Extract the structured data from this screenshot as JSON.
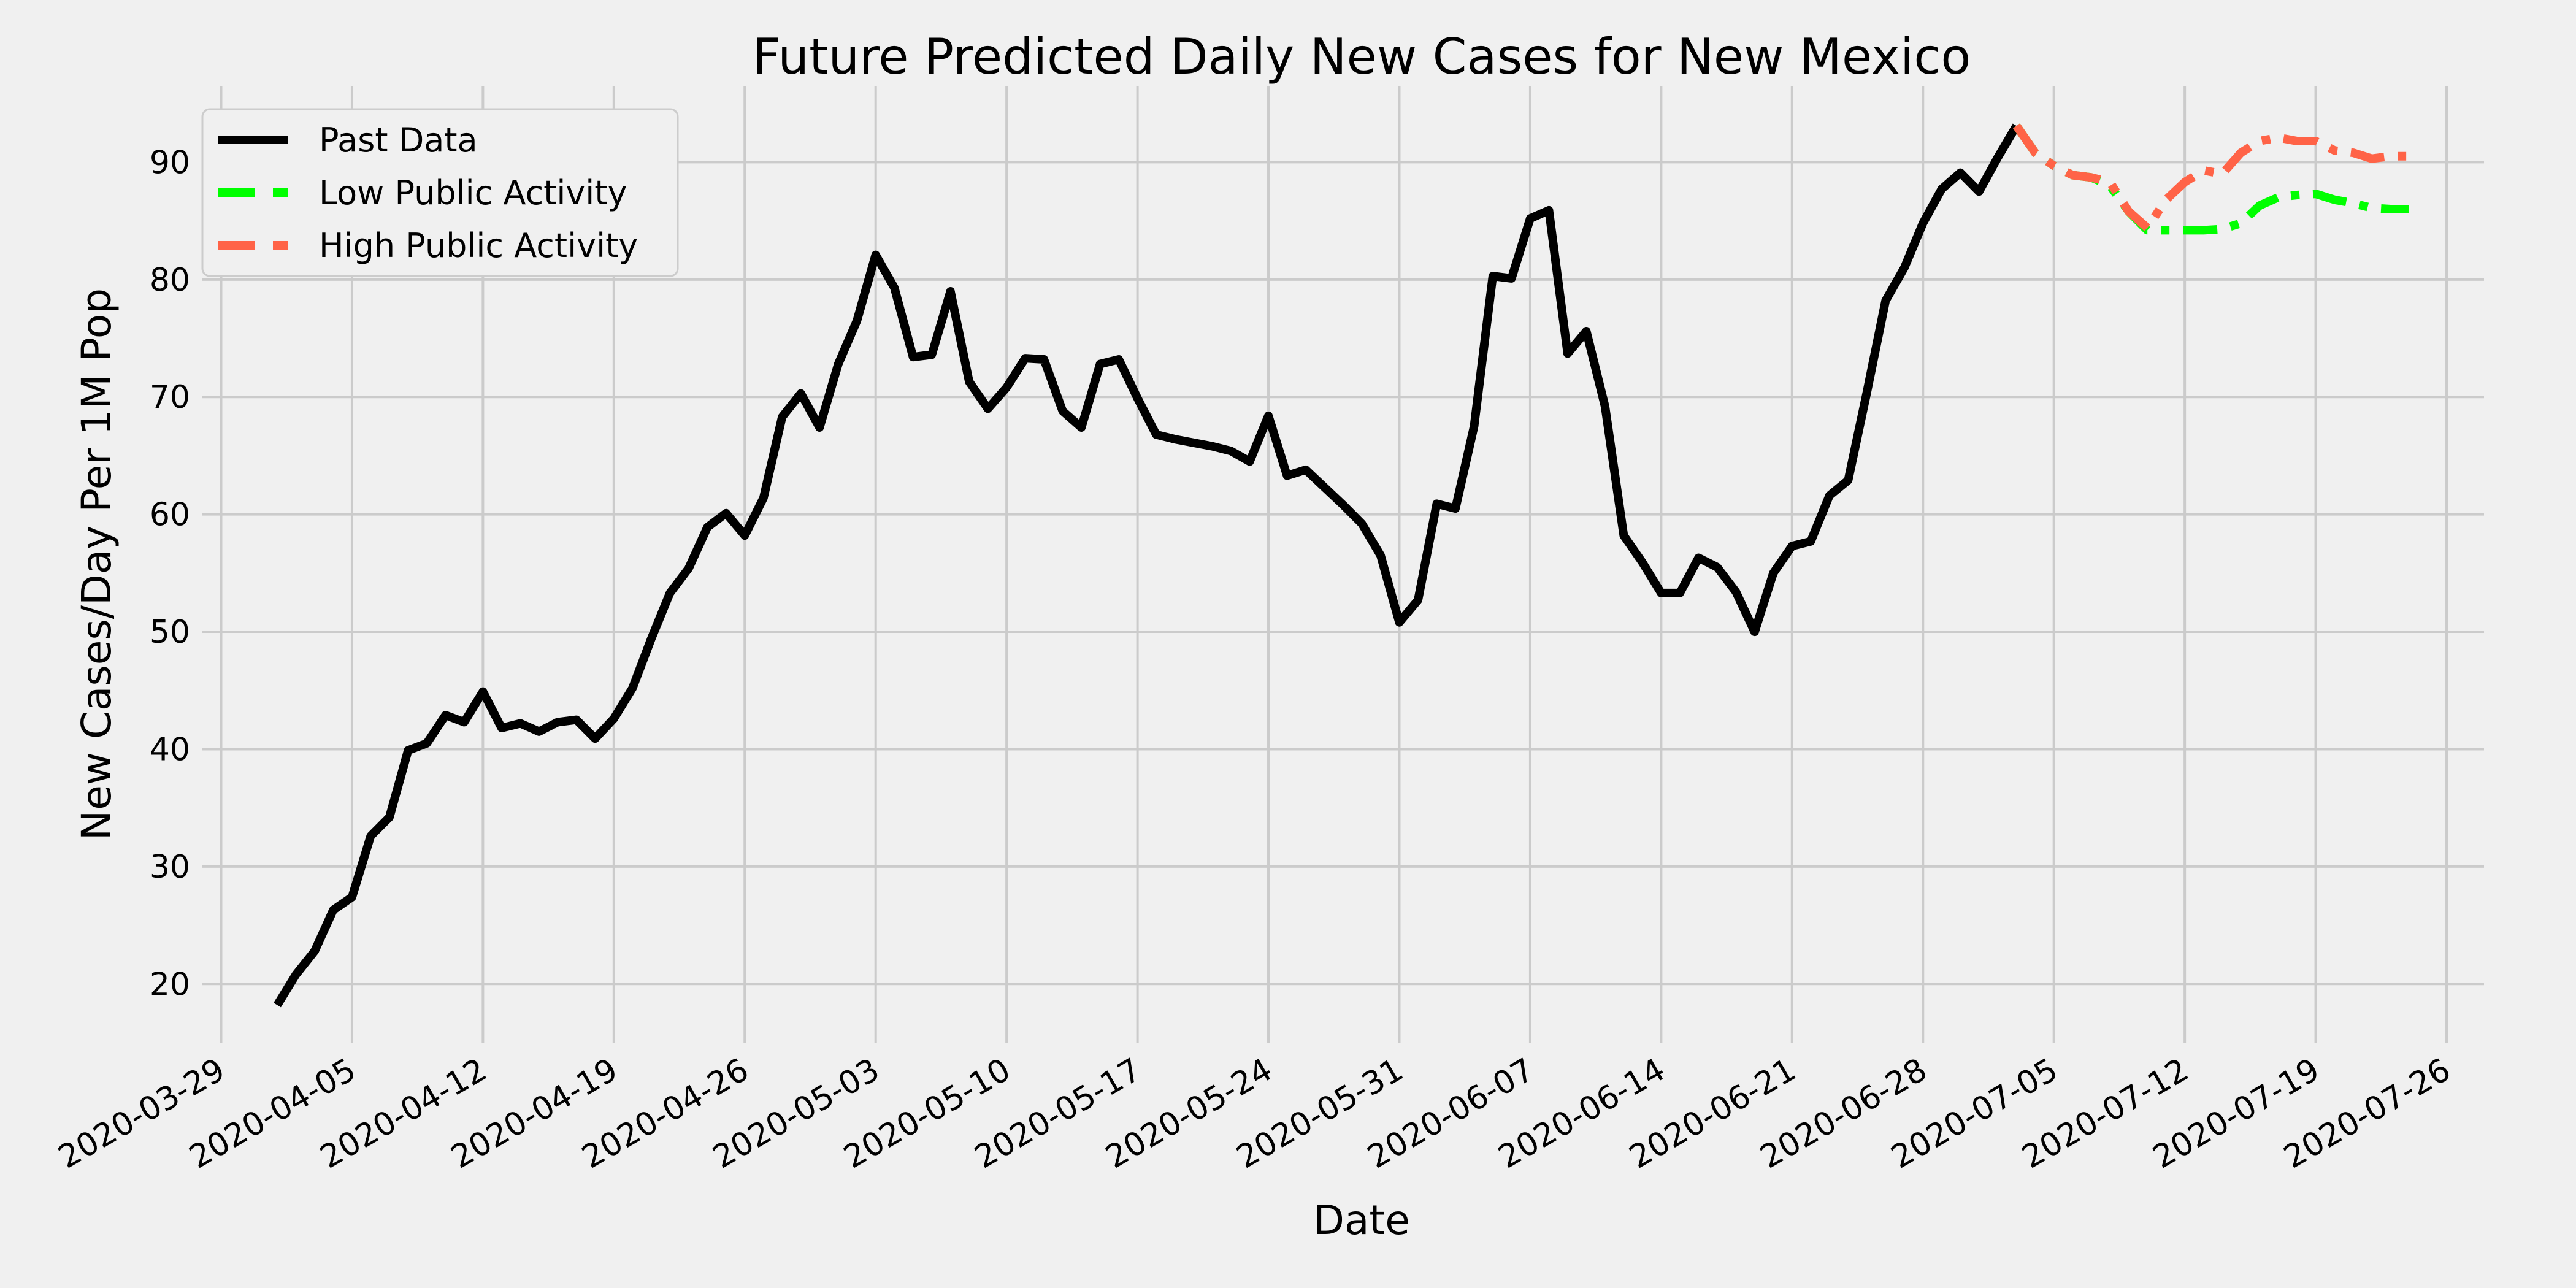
{
  "chart_data": {
    "type": "line",
    "title": "Future Predicted Daily New Cases for New Mexico",
    "xlabel": "Date",
    "ylabel": "New Cases/Day Per 1M Pop",
    "x_tick_labels": [
      "2020-03-29",
      "2020-04-05",
      "2020-04-12",
      "2020-04-19",
      "2020-04-26",
      "2020-05-03",
      "2020-05-10",
      "2020-05-17",
      "2020-05-24",
      "2020-05-31",
      "2020-06-07",
      "2020-06-14",
      "2020-06-21",
      "2020-06-28",
      "2020-07-05",
      "2020-07-12",
      "2020-07-19",
      "2020-07-26"
    ],
    "y_ticks": [
      20,
      30,
      40,
      50,
      60,
      70,
      80,
      90
    ],
    "xlim": [
      "2020-03-28",
      "2020-07-28"
    ],
    "ylim": [
      15,
      96.5
    ],
    "grid": true,
    "legend_position": "top-left",
    "series": [
      {
        "name": "Past Data",
        "color": "#000000",
        "style": "solid",
        "x": [
          "2020-04-01",
          "2020-04-02",
          "2020-04-03",
          "2020-04-04",
          "2020-04-05",
          "2020-04-06",
          "2020-04-07",
          "2020-04-08",
          "2020-04-09",
          "2020-04-10",
          "2020-04-11",
          "2020-04-12",
          "2020-04-13",
          "2020-04-14",
          "2020-04-15",
          "2020-04-16",
          "2020-04-17",
          "2020-04-18",
          "2020-04-19",
          "2020-04-20",
          "2020-04-21",
          "2020-04-22",
          "2020-04-23",
          "2020-04-24",
          "2020-04-25",
          "2020-04-26",
          "2020-04-27",
          "2020-04-28",
          "2020-04-29",
          "2020-04-30",
          "2020-05-01",
          "2020-05-02",
          "2020-05-03",
          "2020-05-04",
          "2020-05-05",
          "2020-05-06",
          "2020-05-07",
          "2020-05-08",
          "2020-05-09",
          "2020-05-10",
          "2020-05-11",
          "2020-05-12",
          "2020-05-13",
          "2020-05-14",
          "2020-05-15",
          "2020-05-16",
          "2020-05-17",
          "2020-05-18",
          "2020-05-19",
          "2020-05-20",
          "2020-05-21",
          "2020-05-22",
          "2020-05-23",
          "2020-05-24",
          "2020-05-25",
          "2020-05-26",
          "2020-05-27",
          "2020-05-28",
          "2020-05-29",
          "2020-05-30",
          "2020-05-31",
          "2020-06-01",
          "2020-06-02",
          "2020-06-03",
          "2020-06-04",
          "2020-06-05",
          "2020-06-06",
          "2020-06-07",
          "2020-06-08",
          "2020-06-09",
          "2020-06-10",
          "2020-06-11",
          "2020-06-12",
          "2020-06-13",
          "2020-06-14",
          "2020-06-15",
          "2020-06-16",
          "2020-06-17",
          "2020-06-18",
          "2020-06-19",
          "2020-06-20",
          "2020-06-21",
          "2020-06-22",
          "2020-06-23",
          "2020-06-24",
          "2020-06-25",
          "2020-06-26",
          "2020-06-27",
          "2020-06-28",
          "2020-06-29",
          "2020-06-30",
          "2020-07-01",
          "2020-07-02",
          "2020-07-03"
        ],
        "y": [
          18.2,
          20.8,
          22.8,
          26.3,
          27.4,
          32.6,
          34.2,
          39.9,
          40.5,
          42.9,
          42.3,
          44.9,
          41.8,
          42.2,
          41.5,
          42.3,
          42.5,
          40.9,
          42.6,
          45.2,
          49.4,
          53.3,
          55.4,
          58.9,
          60.1,
          58.2,
          61.4,
          68.3,
          70.3,
          67.4,
          72.8,
          76.5,
          82.1,
          79.3,
          73.4,
          73.6,
          79.0,
          71.3,
          69.0,
          70.8,
          73.3,
          73.2,
          68.8,
          67.4,
          72.8,
          73.2,
          69.9,
          66.8,
          66.4,
          66.1,
          65.8,
          65.4,
          64.5,
          68.4,
          63.3,
          63.8,
          62.3,
          60.8,
          59.2,
          56.5,
          50.8,
          52.7,
          60.9,
          60.5,
          67.5,
          80.3,
          80.1,
          85.2,
          85.9,
          73.7,
          75.6,
          69.2,
          58.2,
          55.9,
          53.3,
          53.3,
          56.3,
          55.5,
          53.4,
          50.0,
          55.0,
          57.3,
          57.7,
          61.6,
          62.9,
          70.4,
          78.2,
          81.0,
          84.8,
          87.7,
          89.1,
          87.5,
          90.4,
          93.1
        ]
      },
      {
        "name": "Low Public Activity",
        "color": "#00ff00",
        "style": "dashdot",
        "x": [
          "2020-07-03",
          "2020-07-04",
          "2020-07-05",
          "2020-07-06",
          "2020-07-07",
          "2020-07-08",
          "2020-07-09",
          "2020-07-10",
          "2020-07-11",
          "2020-07-12",
          "2020-07-13",
          "2020-07-14",
          "2020-07-15",
          "2020-07-16",
          "2020-07-17",
          "2020-07-18",
          "2020-07-19",
          "2020-07-20",
          "2020-07-21",
          "2020-07-22",
          "2020-07-23",
          "2020-07-24"
        ],
        "y": [
          93.1,
          90.8,
          89.7,
          88.9,
          88.7,
          88.0,
          85.8,
          84.2,
          84.2,
          84.2,
          84.2,
          84.3,
          84.8,
          86.3,
          87.0,
          87.2,
          87.3,
          86.8,
          86.5,
          86.1,
          86.0,
          86.0
        ]
      },
      {
        "name": "High Public Activity",
        "color": "#ff6347",
        "style": "dashdot",
        "x": [
          "2020-07-03",
          "2020-07-04",
          "2020-07-05",
          "2020-07-06",
          "2020-07-07",
          "2020-07-08",
          "2020-07-09",
          "2020-07-10",
          "2020-07-11",
          "2020-07-12",
          "2020-07-13",
          "2020-07-14",
          "2020-07-15",
          "2020-07-16",
          "2020-07-17",
          "2020-07-18",
          "2020-07-19",
          "2020-07-20",
          "2020-07-21",
          "2020-07-22",
          "2020-07-23",
          "2020-07-24"
        ],
        "y": [
          93.1,
          90.8,
          89.7,
          88.9,
          88.7,
          88.3,
          85.8,
          84.4,
          86.8,
          88.3,
          89.3,
          89.0,
          90.8,
          91.8,
          92.1,
          91.8,
          91.8,
          91.0,
          90.8,
          90.3,
          90.5,
          90.5
        ]
      }
    ]
  }
}
